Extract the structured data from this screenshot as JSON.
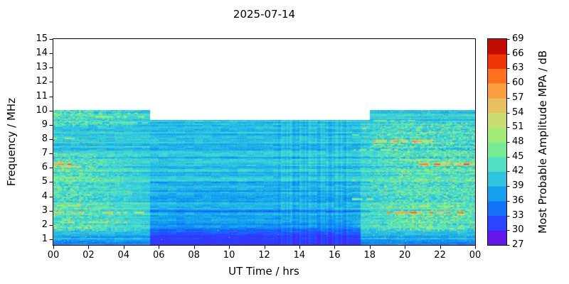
{
  "chart_data": {
    "type": "heatmap",
    "title": "2025-07-14",
    "xlabel": "UT Time / hrs",
    "ylabel": "Frequency / MHz",
    "xlim": [
      0,
      24
    ],
    "ylim": [
      0.6,
      15
    ],
    "grid": false,
    "x_ticks": {
      "values": [
        0,
        2,
        4,
        6,
        8,
        10,
        12,
        14,
        16,
        18,
        20,
        22,
        24
      ],
      "labels": [
        "00",
        "02",
        "04",
        "06",
        "08",
        "10",
        "12",
        "14",
        "16",
        "18",
        "20",
        "22",
        "00"
      ]
    },
    "y_ticks": {
      "values": [
        1,
        2,
        3,
        4,
        5,
        6,
        7,
        8,
        9,
        10,
        11,
        12,
        13,
        14,
        15
      ],
      "labels": [
        "1",
        "2",
        "3",
        "4",
        "5",
        "6",
        "7",
        "8",
        "9",
        "10",
        "11",
        "12",
        "13",
        "14",
        "15"
      ]
    },
    "colorbar": {
      "label": "Most Probable Amplitude MPA / dB",
      "min": 27,
      "max": 69,
      "tick_step": 3,
      "tick_labels": [
        "27",
        "30",
        "33",
        "36",
        "39",
        "42",
        "45",
        "48",
        "51",
        "54",
        "57",
        "60",
        "63",
        "66",
        "69"
      ],
      "stops": [
        {
          "v": 27,
          "c": "#8a00d4"
        },
        {
          "v": 30,
          "c": "#3c2bff"
        },
        {
          "v": 33,
          "c": "#1b5bff"
        },
        {
          "v": 36,
          "c": "#0b8cf5"
        },
        {
          "v": 39,
          "c": "#1fb4e8"
        },
        {
          "v": 42,
          "c": "#3fd6d6"
        },
        {
          "v": 45,
          "c": "#63e6ae"
        },
        {
          "v": 48,
          "c": "#8aee7a"
        },
        {
          "v": 51,
          "c": "#b6e973"
        },
        {
          "v": 54,
          "c": "#dbce72"
        },
        {
          "v": 57,
          "c": "#f4b150"
        },
        {
          "v": 60,
          "c": "#ff8c2a"
        },
        {
          "v": 63,
          "c": "#fb5310"
        },
        {
          "v": 66,
          "c": "#e51800"
        },
        {
          "v": 69,
          "c": "#a50000"
        }
      ]
    },
    "coverage": {
      "night_top_MHz": 10.05,
      "day_top_MHz": 9.35,
      "day_start_hr": 5.5,
      "day_end_hr": 18.0,
      "min_MHz": 0.6
    },
    "background": {
      "base_dB": 41,
      "row_striation_dB": 1.8,
      "speckle_dB": 1.2,
      "night_low_freq_boost_dB": 0.8,
      "daytime": {
        "t0": 5.5,
        "t1": 17.5,
        "broad_dip_dB": 0.8,
        "dip_dB": 2.2,
        "dip_center_MHz": 2.6,
        "dip_sigma_MHz": 1.5,
        "low_freq_extra_below_MHz": 2.3,
        "low_freq_extra_slope": 5
      },
      "bottom_band": {
        "below_MHz": 1.6,
        "slope_dB_per_MHz": 6,
        "floor_dB": 31
      },
      "dawn": {
        "t_end": 5.5,
        "ramp_hrs": 4,
        "patch_dB": 7,
        "zone_MHz": [
          1.6,
          7.0
        ],
        "top_zone_MHz": [
          8.9,
          10.05
        ]
      },
      "dusk": {
        "t_start": 16.8,
        "ramp_hrs": 3,
        "patch_dB": 7,
        "zone_MHz": [
          1.6,
          9.2
        ]
      },
      "salt_probability": 0.02,
      "salt_min_dB": 50,
      "salt_range_dB": 16,
      "global_salt_probability": 0.0008,
      "midday_columns": {
        "t0": 12.8,
        "t1": 16.8,
        "amp_dB": 1.5
      }
    },
    "streaks": [
      {
        "f": 6.25,
        "t0": 0,
        "t1": 1.6,
        "dv": 26,
        "w": 0.09,
        "p": 0.85
      },
      {
        "f": 6.05,
        "t0": 0,
        "t1": 2.6,
        "dv": 15,
        "p": 0.55
      },
      {
        "f": 2.85,
        "t0": 0,
        "t1": 5.3,
        "dv": 19,
        "p": 0.55
      },
      {
        "f": 2.2,
        "t0": 0,
        "t1": 4.2,
        "dv": 16,
        "p": 0.5
      },
      {
        "f": 1.8,
        "t0": 0,
        "t1": 2.6,
        "dv": 14,
        "p": 0.5
      },
      {
        "f": 3.35,
        "t0": 0,
        "t1": 1.5,
        "dv": 17,
        "p": 0.6
      },
      {
        "f": 4.1,
        "t0": 0,
        "t1": 2.2,
        "dv": 11,
        "p": 0.5
      },
      {
        "f": 5.3,
        "t0": 0,
        "t1": 3.0,
        "dv": 9,
        "p": 0.5
      },
      {
        "f": 7.0,
        "t0": 0,
        "t1": 0.9,
        "dv": 13,
        "p": 0.55
      },
      {
        "f": 8.05,
        "t0": 0,
        "t1": 1.2,
        "dv": 12,
        "p": 0.45
      },
      {
        "f": 9.55,
        "t0": 0.7,
        "t1": 5.3,
        "dv": 13,
        "w": 0.08,
        "p": 0.5
      },
      {
        "f": 9.8,
        "t0": 1.2,
        "t1": 4.8,
        "dv": 10,
        "p": 0.4
      },
      {
        "f": 9.15,
        "t0": 0,
        "t1": 5.4,
        "dv": 8,
        "p": 0.35
      },
      {
        "f": 4.65,
        "t0": 0,
        "t1": 1.6,
        "dv": 10,
        "p": 0.5
      },
      {
        "f": 7.85,
        "t0": 18.2,
        "t1": 21.6,
        "dv": 22,
        "w": 0.09,
        "p": 0.7
      },
      {
        "f": 7.6,
        "t0": 18.0,
        "t1": 20.6,
        "dv": 13,
        "p": 0.5
      },
      {
        "f": 7.25,
        "t0": 17.1,
        "t1": 19.6,
        "dv": 14,
        "p": 0.5
      },
      {
        "f": 8.3,
        "t0": 17.0,
        "t1": 19.3,
        "dv": 12,
        "p": 0.45
      },
      {
        "f": 8.75,
        "t0": 17.2,
        "t1": 18.5,
        "dv": 18,
        "p": 0.5
      },
      {
        "f": 6.25,
        "t0": 20.8,
        "t1": 24,
        "dv": 26,
        "w": 0.09,
        "p": 0.8
      },
      {
        "f": 6.55,
        "t0": 19.8,
        "t1": 23.3,
        "dv": 13,
        "p": 0.5
      },
      {
        "f": 6.0,
        "t0": 21.4,
        "t1": 24,
        "dv": 12,
        "p": 0.5
      },
      {
        "f": 2.85,
        "t0": 19.0,
        "t1": 24,
        "dv": 24,
        "w": 0.09,
        "p": 0.65
      },
      {
        "f": 2.6,
        "t0": 20.0,
        "t1": 24,
        "dv": 12,
        "p": 0.5
      },
      {
        "f": 2.2,
        "t0": 19.5,
        "t1": 24,
        "dv": 15,
        "p": 0.5
      },
      {
        "f": 1.75,
        "t0": 20.5,
        "t1": 24,
        "dv": 13,
        "p": 0.45
      },
      {
        "f": 3.3,
        "t0": 19.8,
        "t1": 23.1,
        "dv": 14,
        "p": 0.5
      },
      {
        "f": 4.7,
        "t0": 17.0,
        "t1": 19.0,
        "dv": 11,
        "p": 0.45
      },
      {
        "f": 5.1,
        "t0": 17.0,
        "t1": 18.7,
        "dv": 10,
        "p": 0.45
      },
      {
        "f": 4.0,
        "t0": 20.5,
        "t1": 23.6,
        "dv": 10,
        "p": 0.4
      },
      {
        "f": 5.6,
        "t0": 20.0,
        "t1": 22.6,
        "dv": 9,
        "p": 0.4
      },
      {
        "f": 9.3,
        "t0": 18.1,
        "t1": 21.0,
        "dv": 9,
        "p": 0.4
      },
      {
        "f": 3.8,
        "t0": 17.0,
        "t1": 18.3,
        "dv": 9,
        "p": 0.4
      },
      {
        "f": 6.7,
        "t0": 0,
        "t1": 24,
        "dv": -3,
        "p": 1
      },
      {
        "f": 5.0,
        "t0": 5.5,
        "t1": 18,
        "dv": -3,
        "p": 1
      },
      {
        "f": 4.35,
        "t0": 5.5,
        "t1": 18,
        "dv": -2.5,
        "p": 1
      },
      {
        "f": 2.95,
        "t0": 5.5,
        "t1": 18,
        "dv": -3,
        "p": 1
      },
      {
        "f": 7.45,
        "t0": 5.5,
        "t1": 18,
        "dv": -2,
        "p": 1
      },
      {
        "f": 8.35,
        "t0": 5.5,
        "t1": 18,
        "dv": -2,
        "p": 1
      }
    ]
  }
}
